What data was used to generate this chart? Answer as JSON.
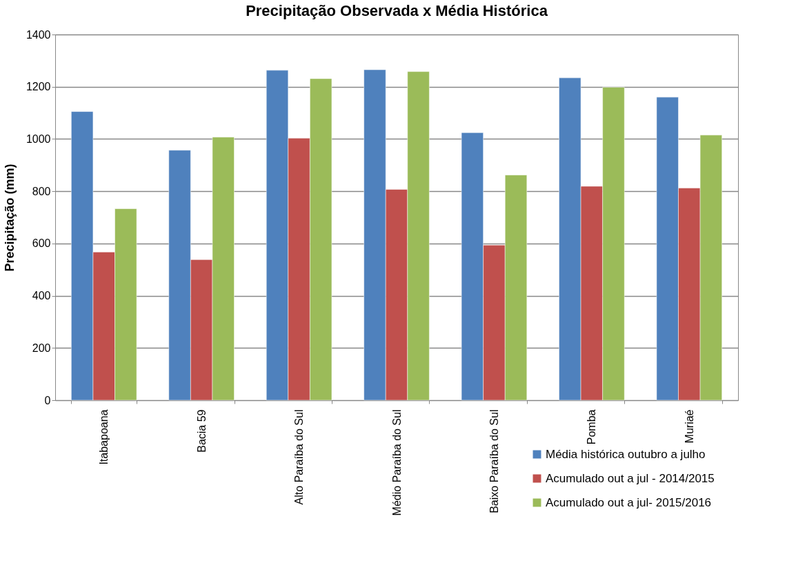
{
  "chart_data": {
    "type": "bar",
    "title": "Precipitação Observada x Média Histórica",
    "ylabel": "Precipitação (mm)",
    "categories": [
      "Itabapoana",
      "Bacia 59",
      "Alto Paraíba do Sul",
      "Médio Paraíba do Sul",
      "Baixo Paraíba do Sul",
      "Pomba",
      "Muriaé"
    ],
    "series": [
      {
        "name": "Média histórica outubro a julho",
        "color": "#4f81bd",
        "values": [
          1105,
          957,
          1263,
          1265,
          1024,
          1234,
          1160
        ]
      },
      {
        "name": "Acumulado out a jul - 2014/2015",
        "color": "#c0504d",
        "values": [
          567,
          538,
          1003,
          807,
          594,
          819,
          812
        ]
      },
      {
        "name": "Acumulado out a jul- 2015/2016",
        "color": "#9bbb59",
        "values": [
          733,
          1007,
          1231,
          1258,
          862,
          1198,
          1015
        ]
      }
    ],
    "ylim": [
      0,
      1400
    ],
    "yticks": [
      0,
      200,
      400,
      600,
      800,
      1000,
      1200,
      1400
    ],
    "grid": "y",
    "legend": "bottom right"
  }
}
